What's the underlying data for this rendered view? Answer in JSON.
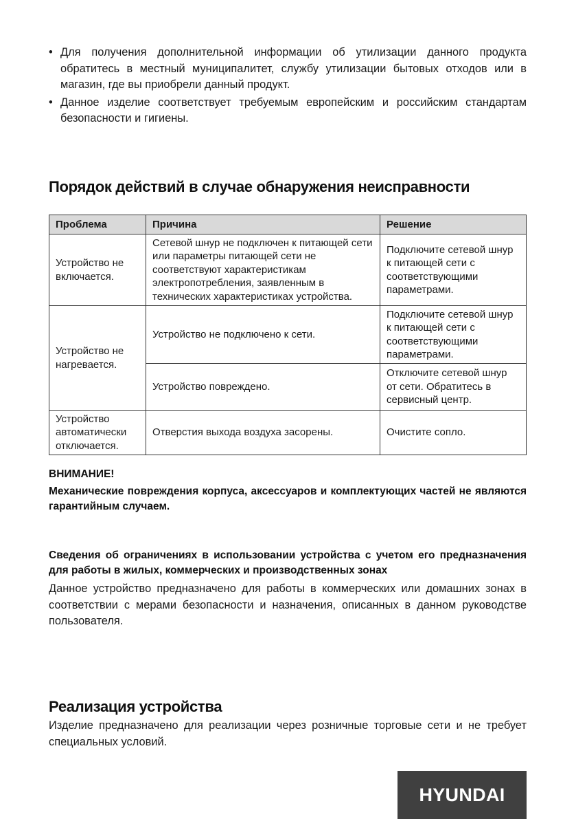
{
  "bullets": [
    "Для получения дополнительной информации об утилизации данного продукта обратитесь в местный муниципалитет, службу утилизации бытовых отходов или в магазин, где вы приобрели данный продукт.",
    "Данное изделие соответствует требуемым европейским и российским стандартам безопасности и гигиены."
  ],
  "troubleshooting": {
    "title": "Порядок действий в случае обнаружения неисправности",
    "headers": [
      "Проблема",
      "Причина",
      "Решение"
    ],
    "rows": [
      {
        "problem": "Устройство не включается.",
        "cause": "Сетевой шнур не подключен к питающей сети или параметры питающей сети не соответствуют характеристикам электропотребления, заявленным в технических характеристиках устройства.",
        "solution": "Подключите сетевой шнур к питающей сети с соответствующими параметрами."
      },
      {
        "problem": "Устройство не нагревается.",
        "cause": "Устройство не подключено к сети.",
        "solution": "Подключите сетевой шнур к питающей сети с соответствующими параметрами."
      },
      {
        "cause": "Устройство повреждено.",
        "solution": "Отключите сетевой шнур от сети. Обратитесь в сервисный центр."
      },
      {
        "problem": "Устройство автоматически отключается.",
        "cause": "Отверстия выхода воздуха засорены.",
        "solution": "Очистите сопло."
      }
    ]
  },
  "warning": {
    "title": "ВНИМАНИЕ!",
    "text": "Механические повреждения корпуса, аксессуаров и комплектующих частей не являются гарантийным случаем."
  },
  "restrictions": {
    "title": "Сведения об ограничениях в использовании устройства с учетом его предназначения для работы в жилых, коммерческих и производственных зонах",
    "text": "Данное устройство предназначено для работы в коммерческих или домашних зонах в соответствии с мерами безопасности и назначения, описанных в данном руководстве пользователя."
  },
  "sales": {
    "title": "Реализация устройства",
    "text": "Изделие предназначено для реализации через розничные торговые сети и не требует специальных условий."
  },
  "logo": {
    "text": "HYUNDAI",
    "bg_color": "#404040"
  }
}
